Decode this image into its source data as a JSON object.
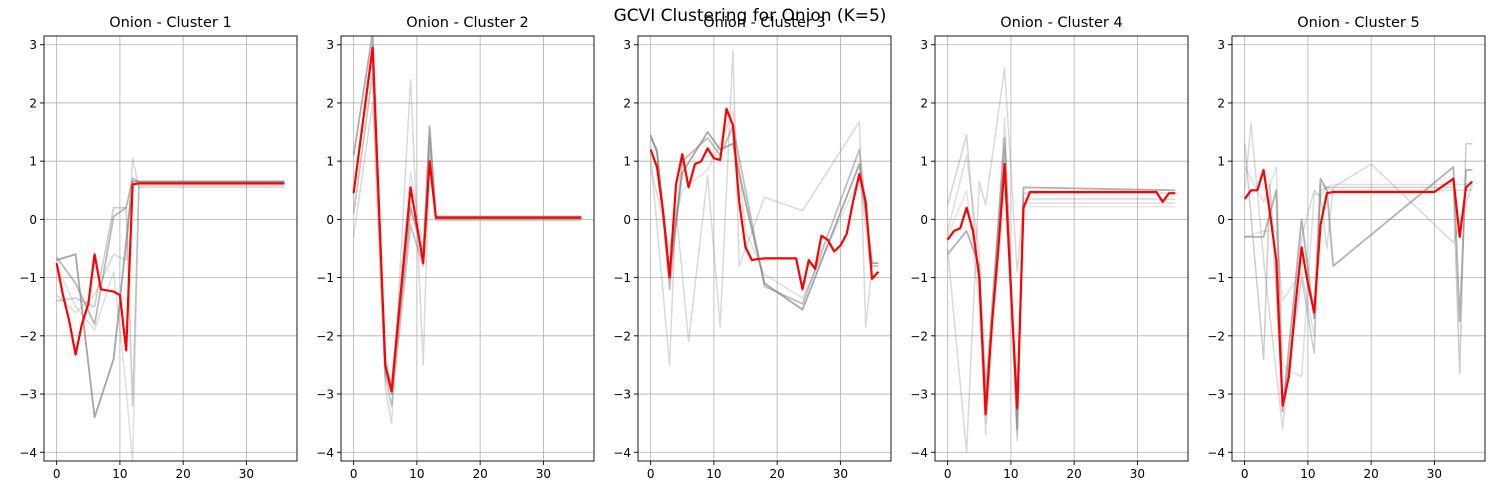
{
  "figure": {
    "title": "GCVI Clustering for Onion (K=5)"
  },
  "colors": {
    "centroid": "#ff0000",
    "member": "#808080",
    "grid": "#b0b0b0",
    "axis": "#000000"
  },
  "chart_data": [
    {
      "type": "line",
      "title": "Onion - Cluster 1",
      "xlim": [
        -2,
        38
      ],
      "ylim": [
        -4.15,
        3.15
      ],
      "xticks": [
        0,
        10,
        20,
        30
      ],
      "yticks": [
        -4,
        -3,
        -2,
        -1,
        0,
        1,
        2,
        3
      ],
      "grid": true,
      "centroid": {
        "x": [
          0,
          1,
          2,
          3,
          4,
          5,
          6,
          7,
          8,
          9,
          10,
          11,
          12,
          13,
          36
        ],
        "y": [
          -0.75,
          -1.3,
          -1.75,
          -2.32,
          -1.8,
          -1.45,
          -0.6,
          -1.2,
          -1.22,
          -1.24,
          -1.3,
          -2.25,
          0.6,
          0.62,
          0.62
        ]
      },
      "series": [
        {
          "x": [
            0,
            3,
            6,
            9,
            12,
            36
          ],
          "y": [
            -0.7,
            -0.6,
            -3.4,
            -2.4,
            0.65,
            0.65
          ],
          "alpha": 0.7,
          "width": 1.8
        },
        {
          "x": [
            0,
            3,
            6,
            9,
            11,
            12,
            13,
            36
          ],
          "y": [
            -0.65,
            -1.1,
            -1.8,
            0.05,
            0.2,
            0.7,
            0.65,
            0.65
          ],
          "alpha": 0.55,
          "width": 1.8
        },
        {
          "x": [
            0,
            3,
            6,
            9,
            11,
            12,
            13,
            36
          ],
          "y": [
            -1.4,
            -1.35,
            -1.5,
            0.2,
            0.2,
            -3.2,
            0.6,
            0.6
          ],
          "alpha": 0.4,
          "width": 1.6
        },
        {
          "x": [
            0,
            3,
            6,
            9,
            11,
            12,
            13,
            36
          ],
          "y": [
            -1.3,
            -1.6,
            -1.3,
            -0.6,
            -0.7,
            1.05,
            0.55,
            0.55
          ],
          "alpha": 0.3,
          "width": 1.5
        },
        {
          "x": [
            0,
            3,
            6,
            9,
            11,
            12,
            13,
            36
          ],
          "y": [
            -0.8,
            -1.5,
            -1.9,
            -0.9,
            -2.9,
            -4.2,
            0.58,
            0.58
          ],
          "alpha": 0.25,
          "width": 1.5
        }
      ]
    },
    {
      "type": "line",
      "title": "Onion - Cluster 2",
      "xlim": [
        -2,
        38
      ],
      "ylim": [
        -4.15,
        3.15
      ],
      "xticks": [
        0,
        10,
        20,
        30
      ],
      "yticks": [
        -4,
        -3,
        -2,
        -1,
        0,
        1,
        2,
        3
      ],
      "grid": true,
      "centroid": {
        "x": [
          0,
          3,
          5,
          6,
          9,
          11,
          12,
          13,
          36
        ],
        "y": [
          0.45,
          2.95,
          -2.5,
          -2.95,
          0.55,
          -0.75,
          1.0,
          0.03,
          0.03
        ]
      },
      "series": [
        {
          "x": [
            0,
            3,
            5,
            6,
            9,
            11,
            12,
            13,
            36
          ],
          "y": [
            1.1,
            3.2,
            -2.6,
            -3.0,
            0.2,
            -0.6,
            1.6,
            0.05,
            0.05
          ],
          "alpha": 0.65,
          "width": 1.8
        },
        {
          "x": [
            0,
            3,
            5,
            6,
            9,
            11,
            12,
            13,
            36
          ],
          "y": [
            0.1,
            2.5,
            -2.7,
            -3.2,
            -0.1,
            -0.8,
            1.4,
            0.0,
            0.0
          ],
          "alpha": 0.45,
          "width": 1.8
        },
        {
          "x": [
            0,
            3,
            5,
            6,
            9,
            11,
            12,
            13,
            36
          ],
          "y": [
            -0.3,
            2.0,
            -2.9,
            -3.5,
            2.4,
            -2.5,
            1.2,
            0.02,
            0.02
          ],
          "alpha": 0.3,
          "width": 1.5
        },
        {
          "x": [
            0,
            3,
            5,
            6,
            9,
            11,
            12,
            13,
            36
          ],
          "y": [
            0.5,
            2.8,
            -2.4,
            -2.8,
            0.8,
            -0.5,
            0.9,
            -0.02,
            -0.02
          ],
          "alpha": 0.25,
          "width": 1.5
        }
      ]
    },
    {
      "type": "line",
      "title": "Onion - Cluster 3",
      "xlim": [
        -2,
        38
      ],
      "ylim": [
        -4.15,
        3.15
      ],
      "xticks": [
        0,
        10,
        20,
        30
      ],
      "yticks": [
        -4,
        -3,
        -2,
        -1,
        0,
        1,
        2,
        3
      ],
      "grid": true,
      "centroid": {
        "x": [
          0,
          1,
          2,
          3,
          4,
          5,
          6,
          7,
          8,
          9,
          10,
          11,
          12,
          13,
          14,
          15,
          16,
          17,
          18,
          23,
          24,
          25,
          26,
          27,
          28,
          29,
          30,
          31,
          32,
          33,
          34,
          35,
          36
        ],
        "y": [
          1.2,
          0.9,
          0.1,
          -1.0,
          0.6,
          1.12,
          0.55,
          0.95,
          1.0,
          1.22,
          1.05,
          1.02,
          1.9,
          1.62,
          0.3,
          -0.48,
          -0.7,
          -0.68,
          -0.67,
          -0.67,
          -1.2,
          -0.7,
          -0.85,
          -0.28,
          -0.35,
          -0.55,
          -0.45,
          -0.25,
          0.3,
          0.78,
          0.3,
          -1.02,
          -0.9
        ]
      },
      "series": [
        {
          "x": [
            0,
            1,
            3,
            5,
            9,
            11,
            13,
            15,
            18,
            24,
            33,
            35,
            36
          ],
          "y": [
            1.45,
            1.15,
            -0.9,
            0.8,
            1.5,
            1.2,
            1.3,
            0.3,
            -1.1,
            -1.55,
            0.95,
            -0.75,
            -0.75
          ],
          "alpha": 0.7,
          "width": 1.8
        },
        {
          "x": [
            0,
            1,
            3,
            5,
            9,
            11,
            13,
            15,
            18,
            24,
            33,
            35,
            36
          ],
          "y": [
            1.4,
            1.2,
            -1.2,
            1.0,
            1.4,
            1.1,
            1.6,
            0.5,
            -1.15,
            -1.45,
            1.2,
            -0.8,
            -0.8
          ],
          "alpha": 0.5,
          "width": 1.8
        },
        {
          "x": [
            0,
            3,
            4,
            6,
            9,
            11,
            13,
            14,
            18,
            24,
            33,
            34,
            35
          ],
          "y": [
            1.1,
            -2.5,
            0.2,
            -2.1,
            0.75,
            -1.85,
            2.9,
            -0.8,
            0.38,
            0.15,
            1.68,
            -1.85,
            -0.8
          ],
          "alpha": 0.3,
          "width": 1.5
        },
        {
          "x": [
            0,
            3,
            5,
            9,
            11,
            13,
            15,
            18,
            24,
            33,
            35,
            36
          ],
          "y": [
            0.9,
            -0.5,
            0.5,
            0.85,
            1.3,
            1.85,
            -0.2,
            -0.95,
            -1.35,
            0.7,
            -1.0,
            -1.0
          ],
          "alpha": 0.25,
          "width": 1.5
        }
      ]
    },
    {
      "type": "line",
      "title": "Onion - Cluster 4",
      "xlim": [
        -2,
        38
      ],
      "ylim": [
        -4.15,
        3.15
      ],
      "xticks": [
        0,
        10,
        20,
        30
      ],
      "yticks": [
        -4,
        -3,
        -2,
        -1,
        0,
        1,
        2,
        3
      ],
      "grid": true,
      "centroid": {
        "x": [
          0,
          1,
          2,
          3,
          4,
          5,
          6,
          7,
          8,
          9,
          10,
          11,
          12,
          13,
          33,
          34,
          35,
          36
        ],
        "y": [
          -0.35,
          -0.2,
          -0.15,
          0.2,
          -0.2,
          -1.0,
          -3.35,
          -1.8,
          -0.5,
          0.95,
          -1.2,
          -3.25,
          0.2,
          0.47,
          0.47,
          0.3,
          0.45,
          0.45
        ]
      },
      "series": [
        {
          "x": [
            0,
            3,
            5,
            6,
            9,
            11,
            12,
            36
          ],
          "y": [
            -0.6,
            -0.2,
            -0.8,
            -3.0,
            1.4,
            -3.6,
            0.55,
            0.5
          ],
          "alpha": 0.6,
          "width": 1.8
        },
        {
          "x": [
            0,
            3,
            5,
            6,
            9,
            11,
            12,
            36
          ],
          "y": [
            0.25,
            1.45,
            -1.2,
            -3.3,
            1.2,
            -3.8,
            0.45,
            0.45
          ],
          "alpha": 0.35,
          "width": 1.5
        },
        {
          "x": [
            0,
            3,
            5,
            6,
            9,
            11,
            12,
            36
          ],
          "y": [
            -0.5,
            -4.0,
            0.65,
            0.25,
            2.6,
            -0.9,
            0.35,
            0.35
          ],
          "alpha": 0.3,
          "width": 1.5
        },
        {
          "x": [
            0,
            3,
            5,
            6,
            9,
            11,
            12,
            36
          ],
          "y": [
            -0.2,
            1.1,
            -0.6,
            -3.7,
            1.75,
            -3.7,
            0.28,
            0.28
          ],
          "alpha": 0.25,
          "width": 1.5
        },
        {
          "x": [
            0,
            3,
            5,
            6,
            9,
            11,
            12,
            36
          ],
          "y": [
            -0.3,
            0.5,
            -1.5,
            -3.5,
            0.6,
            -3.4,
            0.22,
            0.22
          ],
          "alpha": 0.2,
          "width": 1.5
        }
      ]
    },
    {
      "type": "line",
      "title": "Onion - Cluster 5",
      "xlim": [
        -2,
        38
      ],
      "ylim": [
        -4.15,
        3.15
      ],
      "xticks": [
        0,
        10,
        20,
        30
      ],
      "yticks": [
        -4,
        -3,
        -2,
        -1,
        0,
        1,
        2,
        3
      ],
      "grid": true,
      "centroid": {
        "x": [
          0,
          1,
          2,
          3,
          4,
          5,
          6,
          7,
          8,
          9,
          10,
          11,
          12,
          13,
          14,
          20,
          30,
          33,
          34,
          35,
          36
        ],
        "y": [
          0.35,
          0.5,
          0.5,
          0.85,
          0.1,
          -0.7,
          -3.2,
          -2.7,
          -1.5,
          -0.48,
          -1.1,
          -1.6,
          -0.1,
          0.45,
          0.47,
          0.47,
          0.47,
          0.7,
          -0.3,
          0.55,
          0.65
        ]
      },
      "series": [
        {
          "x": [
            0,
            3,
            5,
            6,
            9,
            11,
            12,
            13,
            14,
            33,
            34,
            35,
            36
          ],
          "y": [
            -0.3,
            -0.3,
            0.5,
            -3.3,
            0.0,
            -1.7,
            0.7,
            0.5,
            -0.8,
            0.9,
            -1.75,
            0.85,
            0.85
          ],
          "alpha": 0.6,
          "width": 1.8
        },
        {
          "x": [
            0,
            3,
            4,
            6,
            9,
            11,
            12,
            13,
            14,
            33,
            34,
            35,
            36
          ],
          "y": [
            1.3,
            -2.4,
            0.6,
            -3.2,
            -1.0,
            -2.3,
            0.5,
            0.55,
            0.55,
            0.55,
            -2.65,
            1.3,
            1.3
          ],
          "alpha": 0.4,
          "width": 1.5
        },
        {
          "x": [
            0,
            1,
            3,
            6,
            9,
            11,
            12,
            13,
            14,
            20,
            33,
            36
          ],
          "y": [
            0.5,
            1.65,
            -0.7,
            -3.6,
            -0.3,
            0.5,
            0.4,
            -0.5,
            0.55,
            0.95,
            -0.4,
            0.6
          ],
          "alpha": 0.3,
          "width": 1.5
        },
        {
          "x": [
            0,
            3,
            5,
            6,
            7,
            9,
            11,
            12,
            13,
            14,
            36
          ],
          "y": [
            0.9,
            0.3,
            0.9,
            -2.5,
            -2.6,
            -2.7,
            0.45,
            0.4,
            0.55,
            0.6,
            0.6
          ],
          "alpha": 0.25,
          "width": 1.5
        },
        {
          "x": [
            0,
            3,
            5,
            6,
            9,
            11,
            12,
            14,
            36
          ],
          "y": [
            -0.3,
            -0.2,
            -0.2,
            -1.4,
            -0.9,
            -2.0,
            0.6,
            0.5,
            0.5
          ],
          "alpha": 0.25,
          "width": 1.5
        }
      ]
    }
  ]
}
